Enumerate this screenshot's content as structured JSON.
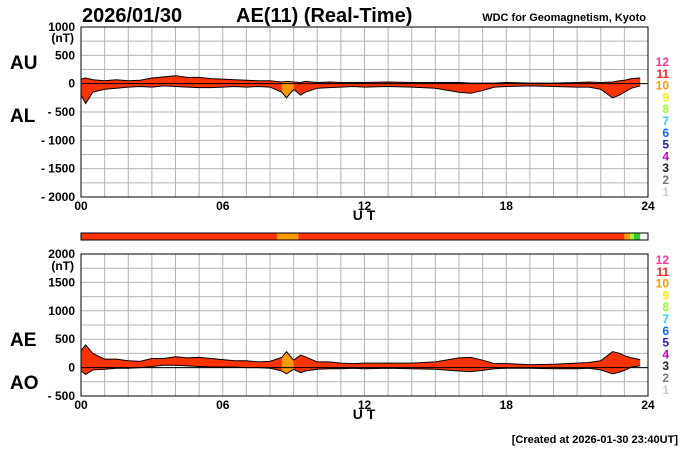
{
  "header": {
    "date": "2026/01/30",
    "title": "AE(11) (Real-Time)",
    "source": "WDC for Geomagnetism, Kyoto"
  },
  "footer": "[Created at 2026-01-30 23:40UT]",
  "colors": {
    "fill_main": "#ff3300",
    "fill_orange": "#ff9900",
    "fill_lime": "#99ff33",
    "grid": "#b4b4b4",
    "outline": "#000000"
  },
  "station_legend": [
    {
      "label": "12",
      "color": "#ff3399"
    },
    {
      "label": "11",
      "color": "#ff2222"
    },
    {
      "label": "10",
      "color": "#ff9900"
    },
    {
      "label": "9",
      "color": "#ffee00"
    },
    {
      "label": "8",
      "color": "#99ff33"
    },
    {
      "label": "7",
      "color": "#33ccff"
    },
    {
      "label": "6",
      "color": "#1166ff"
    },
    {
      "label": "5",
      "color": "#2222aa"
    },
    {
      "label": "4",
      "color": "#cc00cc"
    },
    {
      "label": "3",
      "color": "#222222"
    },
    {
      "label": "2",
      "color": "#777777"
    },
    {
      "label": "1",
      "color": "#cccccc"
    }
  ],
  "station_bar": [
    {
      "start": 0,
      "end": 8.3,
      "color": "#ff3300"
    },
    {
      "start": 8.3,
      "end": 9.2,
      "color": "#ff9900"
    },
    {
      "start": 9.2,
      "end": 23.0,
      "color": "#ff3300"
    },
    {
      "start": 23.0,
      "end": 23.25,
      "color": "#ff9900"
    },
    {
      "start": 23.25,
      "end": 23.4,
      "color": "#99ff33"
    },
    {
      "start": 23.4,
      "end": 23.67,
      "color": "#33cc33"
    }
  ],
  "chart_data": [
    {
      "type": "area",
      "upper_series_label": "AU",
      "lower_series_label": "AL",
      "xlabel": "U T",
      "ylabel": "(nT)",
      "xlim": [
        0,
        24
      ],
      "ylim": [
        -2000,
        1000
      ],
      "xticks": [
        0,
        6,
        12,
        18,
        24
      ],
      "xtick_labels": [
        "00",
        "06",
        "12",
        "18",
        "24"
      ],
      "yticks": [
        1000,
        500,
        0,
        -500,
        -1000,
        -1500,
        -2000
      ],
      "ytick_labels": [
        "1000",
        "500",
        "0",
        "- 500",
        "- 1000",
        "- 1500",
        "- 2000"
      ],
      "grid": true,
      "x": [
        0,
        0.2,
        0.5,
        1,
        1.5,
        2,
        2.5,
        3,
        3.5,
        4,
        4.5,
        5,
        5.5,
        6,
        6.5,
        7,
        7.5,
        8,
        8.5,
        8.7,
        9,
        9.3,
        9.5,
        10,
        10.5,
        11,
        11.5,
        12,
        13,
        14,
        15,
        16,
        16.5,
        17,
        17.5,
        18,
        19,
        20,
        21,
        21.5,
        22,
        22.5,
        22.8,
        23,
        23.3,
        23.67
      ],
      "upper": [
        80,
        100,
        70,
        50,
        70,
        50,
        60,
        100,
        120,
        140,
        110,
        110,
        90,
        80,
        70,
        60,
        50,
        50,
        30,
        40,
        30,
        20,
        40,
        20,
        30,
        20,
        20,
        20,
        30,
        20,
        20,
        20,
        10,
        10,
        10,
        20,
        10,
        10,
        20,
        30,
        20,
        30,
        50,
        60,
        90,
        100
      ],
      "lower": [
        -200,
        -350,
        -150,
        -100,
        -80,
        -60,
        -50,
        -60,
        -40,
        -50,
        -60,
        -70,
        -70,
        -60,
        -50,
        -60,
        -50,
        -60,
        -150,
        -250,
        -100,
        -200,
        -150,
        -80,
        -70,
        -60,
        -50,
        -60,
        -50,
        -60,
        -80,
        -150,
        -170,
        -120,
        -60,
        -50,
        -40,
        -50,
        -60,
        -60,
        -100,
        -250,
        -200,
        -150,
        -80,
        -40
      ]
    },
    {
      "type": "area",
      "upper_series_label": "AE",
      "lower_series_label": "AO",
      "xlabel": "U T",
      "ylabel": "(nT)",
      "xlim": [
        0,
        24
      ],
      "ylim": [
        -500,
        2000
      ],
      "xticks": [
        0,
        6,
        12,
        18,
        24
      ],
      "xtick_labels": [
        "00",
        "06",
        "12",
        "18",
        "24"
      ],
      "yticks": [
        2000,
        1500,
        1000,
        500,
        0,
        -500
      ],
      "ytick_labels": [
        "2000",
        "1500",
        "1000",
        "500",
        "0",
        "- 500"
      ],
      "grid": true,
      "x": [
        0,
        0.2,
        0.5,
        1,
        1.5,
        2,
        2.5,
        3,
        3.5,
        4,
        4.5,
        5,
        5.5,
        6,
        6.5,
        7,
        7.5,
        8,
        8.5,
        8.7,
        9,
        9.3,
        9.5,
        10,
        10.5,
        11,
        11.5,
        12,
        13,
        14,
        15,
        16,
        16.5,
        17,
        17.5,
        18,
        19,
        20,
        21,
        21.5,
        22,
        22.5,
        22.8,
        23,
        23.3,
        23.67
      ],
      "upper": [
        300,
        400,
        250,
        150,
        150,
        120,
        110,
        160,
        160,
        190,
        170,
        180,
        160,
        140,
        120,
        120,
        100,
        110,
        180,
        280,
        130,
        220,
        190,
        100,
        100,
        80,
        70,
        80,
        80,
        80,
        100,
        170,
        180,
        130,
        70,
        70,
        50,
        60,
        80,
        90,
        120,
        280,
        250,
        210,
        170,
        140
      ],
      "lower": [
        -60,
        -120,
        -40,
        -30,
        -10,
        -10,
        0,
        20,
        40,
        40,
        30,
        20,
        10,
        10,
        10,
        0,
        0,
        -10,
        -60,
        -110,
        -30,
        -90,
        -60,
        -30,
        -20,
        -20,
        -10,
        -20,
        -10,
        -20,
        -30,
        -60,
        -70,
        -50,
        -20,
        -10,
        -10,
        -20,
        -20,
        -10,
        -40,
        -110,
        -80,
        -50,
        10,
        30
      ]
    }
  ]
}
